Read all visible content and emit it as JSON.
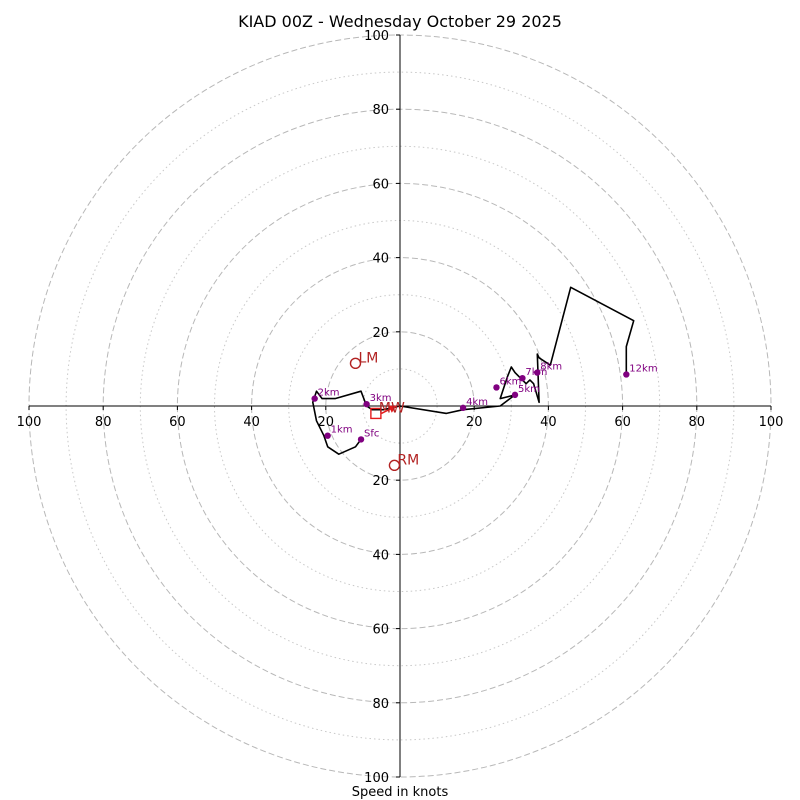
{
  "chart_data": {
    "type": "hodograph",
    "title": "KIAD 00Z - Wednesday October 29 2025",
    "xlabel": "Speed in knots",
    "ylabel": "",
    "units": "knots",
    "max_speed": 100,
    "rings": {
      "major": [
        20,
        40,
        60,
        80,
        100
      ],
      "minor": [
        10,
        30,
        50,
        70,
        90
      ]
    },
    "ticks": {
      "x": [
        {
          "value": -100,
          "label": "100"
        },
        {
          "value": -80,
          "label": "80"
        },
        {
          "value": -60,
          "label": "60"
        },
        {
          "value": -40,
          "label": "40"
        },
        {
          "value": -20,
          "label": "20"
        },
        {
          "value": 20,
          "label": "20"
        },
        {
          "value": 40,
          "label": "40"
        },
        {
          "value": 60,
          "label": "60"
        },
        {
          "value": 80,
          "label": "80"
        },
        {
          "value": 100,
          "label": "100"
        }
      ],
      "y": [
        {
          "value": 100,
          "label": "100"
        },
        {
          "value": 80,
          "label": "80"
        },
        {
          "value": 60,
          "label": "60"
        },
        {
          "value": 40,
          "label": "40"
        },
        {
          "value": 20,
          "label": "20"
        },
        {
          "value": -20,
          "label": "20"
        },
        {
          "value": -40,
          "label": "40"
        },
        {
          "value": -60,
          "label": "60"
        },
        {
          "value": -80,
          "label": "80"
        },
        {
          "value": -100,
          "label": "100"
        }
      ]
    },
    "profile": {
      "name": "wind profile",
      "color": "#000000",
      "u": [
        -10.5,
        -12,
        -16.5,
        -19.5,
        -20.5,
        -22.5,
        -23.5,
        -22.5,
        -21,
        -17.5,
        -10.5,
        -9,
        -7.5,
        -4.5,
        0,
        12.5,
        17,
        27,
        31,
        27,
        28,
        29,
        30,
        31,
        32.5,
        34,
        35,
        36,
        37.5,
        37,
        37.5,
        40.5,
        46,
        63,
        61,
        61
      ],
      "v": [
        -9,
        -11,
        -13,
        -11,
        -8,
        -4,
        1,
        4,
        2,
        2,
        4,
        0,
        -1,
        -1,
        0,
        -2,
        -1,
        0,
        3,
        2,
        5,
        8,
        10.5,
        9,
        7.5,
        6,
        7,
        6,
        1,
        14,
        13,
        11,
        32,
        23,
        16,
        8.5
      ]
    },
    "height_markers": [
      {
        "label": "Sfc",
        "u": -10.5,
        "v": -9
      },
      {
        "label": "1km",
        "u": -19.5,
        "v": -8
      },
      {
        "label": "2km",
        "u": -23,
        "v": 2
      },
      {
        "label": "3km",
        "u": -9,
        "v": 0.5
      },
      {
        "label": "4km",
        "u": 17,
        "v": -0.5
      },
      {
        "label": "5km",
        "u": 31,
        "v": 3
      },
      {
        "label": "6km",
        "u": 26,
        "v": 5
      },
      {
        "label": "7km",
        "u": 33,
        "v": 7.5
      },
      {
        "label": "8km",
        "u": 37,
        "v": 9
      },
      {
        "label": "12km",
        "u": 61,
        "v": 8.5
      }
    ],
    "storm_motions": [
      {
        "label": "LM",
        "marker": "circle",
        "u": -12,
        "v": 11.5
      },
      {
        "label": "RM",
        "marker": "circle",
        "u": -1.5,
        "v": -16
      },
      {
        "label": "MW",
        "marker": "square",
        "u": -6.5,
        "v": -2
      }
    ],
    "shear_arrow": {
      "from_u": -5,
      "from_v": -2,
      "to_u": -1,
      "to_v": 0
    }
  }
}
